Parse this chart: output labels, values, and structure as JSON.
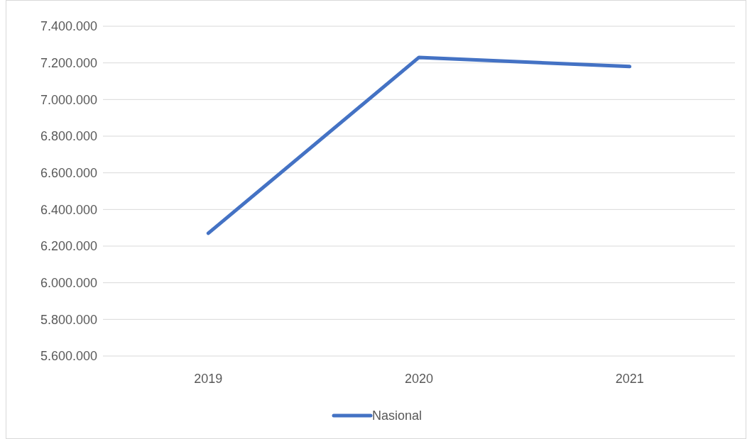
{
  "chart_data": {
    "type": "line",
    "categories": [
      "2019",
      "2020",
      "2021"
    ],
    "series": [
      {
        "name": "Nasional",
        "color": "#4472c4",
        "values": [
          6270000,
          7230000,
          7180000
        ]
      }
    ],
    "ylim": [
      5600000,
      7400000
    ],
    "yticks": [
      {
        "value": 5600000,
        "label": "5.600.000"
      },
      {
        "value": 5800000,
        "label": "5.800.000"
      },
      {
        "value": 6000000,
        "label": "6.000.000"
      },
      {
        "value": 6200000,
        "label": "6.200.000"
      },
      {
        "value": 6400000,
        "label": "6.400.000"
      },
      {
        "value": 6600000,
        "label": "6.600.000"
      },
      {
        "value": 6800000,
        "label": "6.800.000"
      },
      {
        "value": 7000000,
        "label": "7.000.000"
      },
      {
        "value": 7200000,
        "label": "7.200.000"
      },
      {
        "value": 7400000,
        "label": "7.400.000"
      }
    ],
    "grid": "y",
    "legend": "bottom",
    "marker": "none",
    "line_style": "solid"
  }
}
